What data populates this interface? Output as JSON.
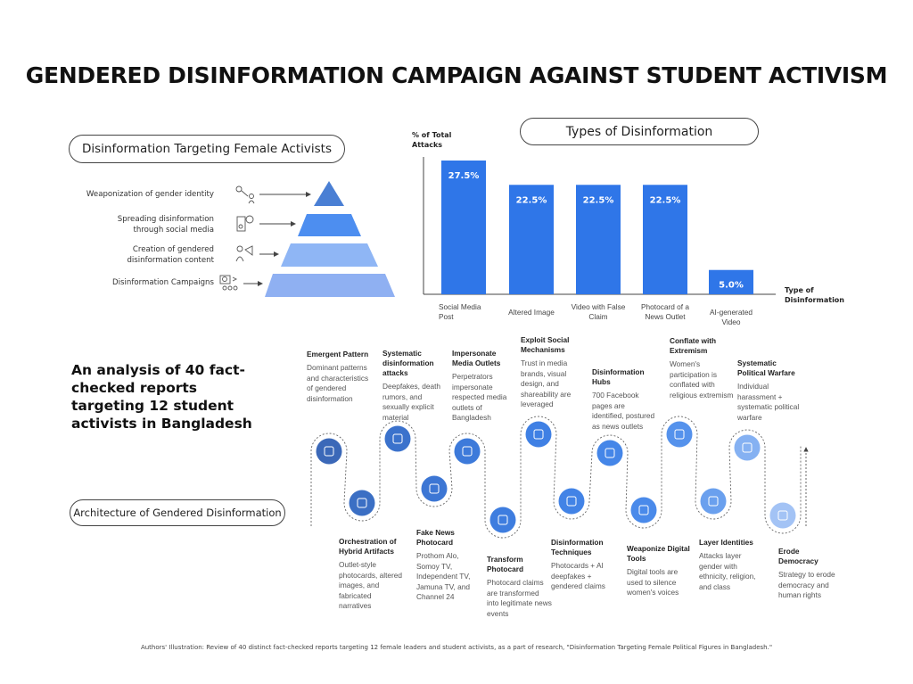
{
  "title": "GENDERED DISINFORMATION CAMPAIGN AGAINST STUDENT ACTIVISM",
  "pyramid": {
    "heading": "Disinformation Targeting Female Activists",
    "levels": [
      {
        "label": "Weaponization of gender identity",
        "icon": "gender-target-icon",
        "color": "#4a7fd4"
      },
      {
        "label": "Spreading disinformation through social media",
        "icon": "social-media-icon",
        "color": "#4d8ef0"
      },
      {
        "label": "Creation of gendered disinformation content",
        "icon": "megaphone-person-icon",
        "color": "#8fb6f5"
      },
      {
        "label": "Disinformation Campaigns",
        "icon": "campaign-group-icon",
        "color": "#8fb0f2"
      }
    ]
  },
  "chart_data": {
    "type": "bar",
    "title": "Types of Disinformation",
    "ylabel": "% of Total Attacks",
    "xlabel": "Type of Disinformation",
    "categories": [
      "Social Media Post",
      "Altered Image",
      "Video with False Claim",
      "Photocard of a News Outlet",
      "AI-generated Video"
    ],
    "values": [
      27.5,
      22.5,
      22.5,
      22.5,
      5.0
    ],
    "value_labels": [
      "27.5%",
      "22.5%",
      "22.5%",
      "22.5%",
      "5.0%"
    ],
    "ylim": [
      0,
      28.5
    ],
    "color": "#2f76e8",
    "grid": false
  },
  "summary": "An analysis of 40 fact-checked reports targeting 12 student activists in Bangladesh",
  "architecture": {
    "heading": "Architecture of Gendered Disinformation",
    "steps": [
      {
        "title": "Emergent Pattern",
        "desc": "Dominant patterns and characteristics of gendered disinformation",
        "icon": "people-pattern-icon",
        "color": "#3b68b8"
      },
      {
        "title": "Orchestration of Hybrid Artifacts",
        "desc": "Outlet-style photocards, altered images, and fabricated narratives",
        "icon": "hybrid-media-icon",
        "color": "#3b6fc4"
      },
      {
        "title": "Systematic disinformation attacks",
        "desc": "Deepfakes, death rumors, and sexually explicit material",
        "icon": "browser-heart-icon",
        "color": "#3b72cc"
      },
      {
        "title": "Fake News Photocard",
        "desc": "Prothom Alo, Somoy TV, Independent TV, Jamuna TV, and Channel 24",
        "icon": "photocard-icon",
        "color": "#3c76d4"
      },
      {
        "title": "Impersonate Media Outlets",
        "desc": "Perpetrators impersonate respected media outlets of Bangladesh",
        "icon": "copyright-icon",
        "color": "#3d7ada"
      },
      {
        "title": "Transform Photocard",
        "desc": "Photocard claims are transformed into legitimate news events",
        "icon": "hand-card-icon",
        "color": "#3e7ddf"
      },
      {
        "title": "Exploit Social Mechanisms",
        "desc": "Trust in media brands, visual design, and shareability are leveraged",
        "icon": "lock-user-icon",
        "color": "#3f80e4"
      },
      {
        "title": "Disinformation Techniques",
        "desc": "Photocards + AI deepfakes + gendered claims",
        "icon": "devices-icon",
        "color": "#4283e6"
      },
      {
        "title": "Disinformation Hubs",
        "desc": "700 Facebook pages are identified, postured as news outlets",
        "icon": "hub-network-icon",
        "color": "#4586e8"
      },
      {
        "title": "Weaponize Digital Tools",
        "desc": "Digital tools are used to silence women's voices",
        "icon": "silence-megaphone-icon",
        "color": "#4a8aea"
      },
      {
        "title": "Conflate with Extremism",
        "desc": "Women's participation is conflated with religious extremism",
        "icon": "group-speech-icon",
        "color": "#5592ec"
      },
      {
        "title": "Layer Identities",
        "desc": "Attacks layer gender with ethnicity, religion, and class",
        "icon": "layered-identity-icon",
        "color": "#6aa0ee"
      },
      {
        "title": "Systematic Political Warfare",
        "desc": "Individual harassment + systematic political warfare",
        "icon": "political-chat-icon",
        "color": "#85b1f2"
      },
      {
        "title": "Erode Democracy",
        "desc": "Strategy to erode democracy and human rights",
        "icon": "blocked-user-icon",
        "color": "#a3c3f5"
      }
    ]
  },
  "footer": "Authors' Illustration: Review of 40 distinct fact-checked reports targeting 12 female leaders and student activists, as a part of research, \"Disinformation Targeting Female Political Figures in Bangladesh.\""
}
